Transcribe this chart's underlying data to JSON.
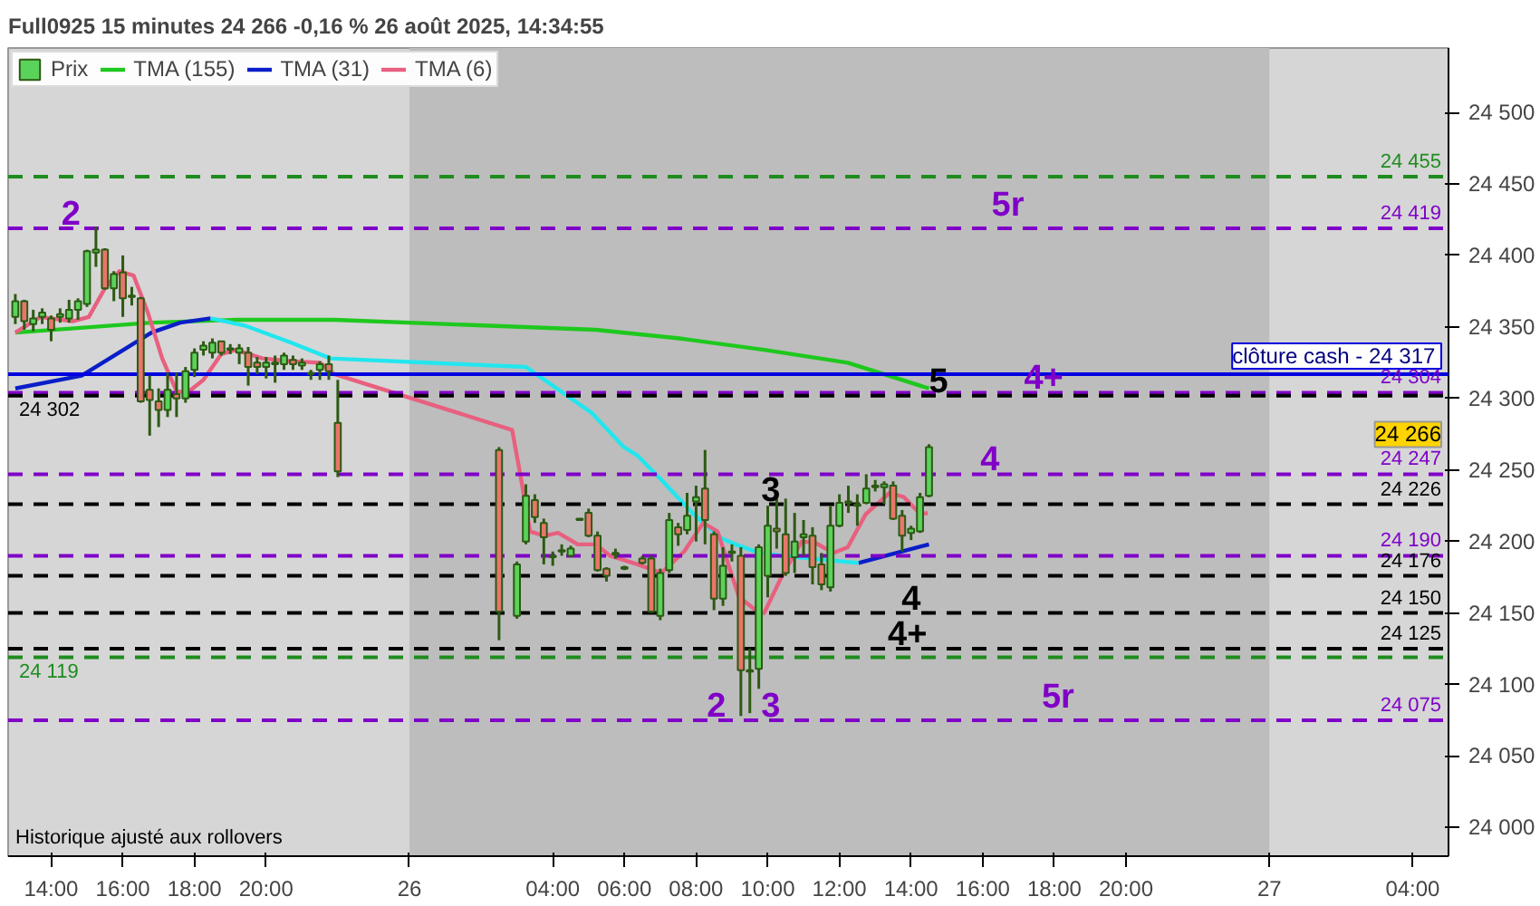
{
  "chart_data": {
    "type": "candlestick",
    "title": "Full0925 15 minutes 24 266 -0,16 % 26 août 2025, 14:34:55",
    "xlim": [
      "2025-08-25T12:48",
      "2025-08-27T05:00"
    ],
    "ylim": [
      23980,
      24545
    ],
    "xticks": [
      {
        "value": "2025-08-25T14:00",
        "label": "14:00"
      },
      {
        "value": "2025-08-25T16:00",
        "label": "16:00"
      },
      {
        "value": "2025-08-25T18:00",
        "label": "18:00"
      },
      {
        "value": "2025-08-25T20:00",
        "label": "20:00"
      },
      {
        "value": "2025-08-26T00:00",
        "label": "26"
      },
      {
        "value": "2025-08-26T04:00",
        "label": "04:00"
      },
      {
        "value": "2025-08-26T06:00",
        "label": "06:00"
      },
      {
        "value": "2025-08-26T08:00",
        "label": "08:00"
      },
      {
        "value": "2025-08-26T10:00",
        "label": "10:00"
      },
      {
        "value": "2025-08-26T12:00",
        "label": "12:00"
      },
      {
        "value": "2025-08-26T14:00",
        "label": "14:00"
      },
      {
        "value": "2025-08-26T16:00",
        "label": "16:00"
      },
      {
        "value": "2025-08-26T18:00",
        "label": "18:00"
      },
      {
        "value": "2025-08-26T20:00",
        "label": "20:00"
      },
      {
        "value": "2025-08-27T00:00",
        "label": "27"
      },
      {
        "value": "2025-08-27T04:00",
        "label": "04:00"
      }
    ],
    "yticks": [
      {
        "value": 24000,
        "label": "24 000"
      },
      {
        "value": 24050,
        "label": "24 050"
      },
      {
        "value": 24100,
        "label": "24 100"
      },
      {
        "value": 24150,
        "label": "24 150"
      },
      {
        "value": 24200,
        "label": "24 200"
      },
      {
        "value": 24250,
        "label": "24 250"
      },
      {
        "value": 24300,
        "label": "24 300"
      },
      {
        "value": 24350,
        "label": "24 350"
      },
      {
        "value": 24400,
        "label": "24 400"
      },
      {
        "value": 24450,
        "label": "24 450"
      },
      {
        "value": 24500,
        "label": "24 500"
      }
    ],
    "grid": false,
    "legend": "top left",
    "series": [
      {
        "name": "Prix",
        "color": "#2d5a14",
        "x": [
          "2025-08-25T13:00",
          "2025-08-25T13:15",
          "2025-08-25T13:30",
          "2025-08-25T13:45",
          "2025-08-25T14:00",
          "2025-08-25T14:15",
          "2025-08-25T14:30",
          "2025-08-25T14:45",
          "2025-08-25T15:00",
          "2025-08-25T15:15",
          "2025-08-25T15:30",
          "2025-08-25T15:45",
          "2025-08-25T16:00",
          "2025-08-25T16:15",
          "2025-08-25T16:30",
          "2025-08-25T16:45",
          "2025-08-25T17:00",
          "2025-08-25T17:15",
          "2025-08-25T17:30",
          "2025-08-25T17:45",
          "2025-08-25T18:00",
          "2025-08-25T18:15",
          "2025-08-25T18:30",
          "2025-08-25T18:45",
          "2025-08-25T19:00",
          "2025-08-25T19:15",
          "2025-08-25T19:30",
          "2025-08-25T19:45",
          "2025-08-25T20:00",
          "2025-08-25T20:15",
          "2025-08-25T20:30",
          "2025-08-25T20:45",
          "2025-08-25T21:00",
          "2025-08-25T21:15",
          "2025-08-25T21:30",
          "2025-08-25T21:45",
          "2025-08-25T22:00",
          "2025-08-26T02:30",
          "2025-08-26T03:00",
          "2025-08-26T03:15",
          "2025-08-26T03:30",
          "2025-08-26T03:45",
          "2025-08-26T04:00",
          "2025-08-26T04:15",
          "2025-08-26T04:30",
          "2025-08-26T04:45",
          "2025-08-26T05:00",
          "2025-08-26T05:15",
          "2025-08-26T05:30",
          "2025-08-26T05:45",
          "2025-08-26T06:00",
          "2025-08-26T06:30",
          "2025-08-26T06:45",
          "2025-08-26T07:00",
          "2025-08-26T07:15",
          "2025-08-26T07:30",
          "2025-08-26T07:45",
          "2025-08-26T08:00",
          "2025-08-26T08:15",
          "2025-08-26T08:30",
          "2025-08-26T08:45",
          "2025-08-26T09:00",
          "2025-08-26T09:15",
          "2025-08-26T09:30",
          "2025-08-26T09:45",
          "2025-08-26T10:00",
          "2025-08-26T10:15",
          "2025-08-26T10:30",
          "2025-08-26T10:45",
          "2025-08-26T11:00",
          "2025-08-26T11:15",
          "2025-08-26T11:30",
          "2025-08-26T11:45",
          "2025-08-26T12:00",
          "2025-08-26T12:15",
          "2025-08-26T12:30",
          "2025-08-26T12:45",
          "2025-08-26T13:00",
          "2025-08-26T13:15",
          "2025-08-26T13:30",
          "2025-08-26T13:45",
          "2025-08-26T14:00",
          "2025-08-26T14:15",
          "2025-08-26T14:30"
        ],
        "ohlc": [
          [
            24357,
            24373,
            24352,
            24368
          ],
          [
            24368,
            24369,
            24348,
            24354
          ],
          [
            24352,
            24362,
            24347,
            24356
          ],
          [
            24357,
            24363,
            24352,
            24360
          ],
          [
            24356,
            24358,
            24340,
            24348
          ],
          [
            24357,
            24363,
            24353,
            24359
          ],
          [
            24356,
            24369,
            24353,
            24362
          ],
          [
            24362,
            24370,
            24355,
            24368
          ],
          [
            24366,
            24404,
            24364,
            24403
          ],
          [
            24402,
            24420,
            24392,
            24404
          ],
          [
            24404,
            24405,
            24376,
            24377
          ],
          [
            24377,
            24389,
            24368,
            24387
          ],
          [
            24388,
            24400,
            24357,
            24370
          ],
          [
            24371,
            24378,
            24365,
            24372
          ],
          [
            24370,
            24371,
            24297,
            24298
          ],
          [
            24306,
            24316,
            24274,
            24299
          ],
          [
            24298,
            24307,
            24280,
            24292
          ],
          [
            24292,
            24318,
            24287,
            24306
          ],
          [
            24303,
            24318,
            24287,
            24300
          ],
          [
            24300,
            24322,
            24297,
            24319
          ],
          [
            24320,
            24335,
            24315,
            24332
          ],
          [
            24334,
            24340,
            24330,
            24337
          ],
          [
            24332,
            24342,
            24328,
            24339
          ],
          [
            24340,
            24340,
            24330,
            24332
          ],
          [
            24334,
            24338,
            24331,
            24335
          ],
          [
            24332,
            24338,
            24324,
            24335
          ],
          [
            24332,
            24336,
            24309,
            24322
          ],
          [
            24325,
            24329,
            24317,
            24322
          ],
          [
            24322,
            24329,
            24314,
            24325
          ],
          [
            24324,
            24330,
            24311,
            24325
          ],
          [
            24324,
            24332,
            24320,
            24330
          ],
          [
            24327,
            24330,
            24320,
            24324
          ],
          [
            24323,
            24328,
            24320,
            24325
          ],
          [
            24318,
            24320,
            24313,
            24317
          ],
          [
            24320,
            24326,
            24313,
            24324
          ],
          [
            24324,
            24330,
            24313,
            24319
          ],
          [
            24283,
            24313,
            24245,
            24249
          ],
          [
            24264,
            24266,
            24131,
            24151
          ],
          [
            24148,
            24186,
            24146,
            24184
          ],
          [
            24200,
            24240,
            24198,
            24232
          ],
          [
            24229,
            24233,
            24213,
            24217
          ],
          [
            24213,
            24216,
            24184,
            24203
          ],
          [
            24189,
            24193,
            24183,
            24190
          ],
          [
            24194,
            24198,
            24190,
            24193
          ],
          [
            24190,
            24197,
            24189,
            24195
          ],
          [
            24215,
            24216,
            24215,
            24216
          ],
          [
            24220,
            24223,
            24203,
            24204
          ],
          [
            24204,
            24207,
            24179,
            24180
          ],
          [
            24181,
            24182,
            24172,
            24176
          ],
          [
            24192,
            24195,
            24188,
            24191
          ],
          [
            24182,
            24183,
            24180,
            24181
          ],
          [
            24188,
            24190,
            24184,
            24185
          ],
          [
            24188,
            24190,
            24150,
            24151
          ],
          [
            24148,
            24181,
            24145,
            24178
          ],
          [
            24180,
            24220,
            24178,
            24215
          ],
          [
            24210,
            24213,
            24197,
            24205
          ],
          [
            24208,
            24234,
            24205,
            24218
          ],
          [
            24228,
            24239,
            24200,
            24231
          ],
          [
            24237,
            24264,
            24198,
            24215
          ],
          [
            24205,
            24207,
            24152,
            24160
          ],
          [
            24160,
            24196,
            24155,
            24183
          ],
          [
            24192,
            24198,
            24186,
            24193
          ],
          [
            24190,
            24196,
            24078,
            24110
          ],
          [
            24110,
            24125,
            24080,
            24109
          ],
          [
            24111,
            24198,
            24097,
            24196
          ],
          [
            24176,
            24225,
            24161,
            24211
          ],
          [
            24209,
            24230,
            24195,
            24207
          ],
          [
            24205,
            24230,
            24176,
            24178
          ],
          [
            24189,
            24220,
            24178,
            24200
          ],
          [
            24203,
            24215,
            24190,
            24205
          ],
          [
            24204,
            24210,
            24170,
            24182
          ],
          [
            24184,
            24192,
            24166,
            24170
          ],
          [
            24168,
            24225,
            24165,
            24211
          ],
          [
            24211,
            24233,
            24210,
            24227
          ],
          [
            24227,
            24239,
            24220,
            24228
          ],
          [
            24225,
            24233,
            24211,
            24226
          ],
          [
            24227,
            24247,
            24226,
            24237
          ],
          [
            24238,
            24243,
            24235,
            24239
          ],
          [
            24238,
            24242,
            24226,
            24240
          ],
          [
            24239,
            24242,
            24215,
            24216
          ],
          [
            24218,
            24222,
            24193,
            24204
          ],
          [
            24206,
            24211,
            24201,
            24209
          ],
          [
            24207,
            24234,
            24206,
            24231
          ],
          [
            24232,
            24268,
            24231,
            24266
          ]
        ],
        "colors": [
          "#5ad35a",
          "#e8766a",
          "#5ad35a",
          "#5ad35a",
          "#e8766a",
          "#5ad35a",
          "#5ad35a",
          "#5ad35a",
          "#5ad35a",
          "#5ad35a",
          "#e8766a",
          "#5ad35a",
          "#e8766a",
          "#5ad35a",
          "#e8766a",
          "#e8766a",
          "#e8766a",
          "#5ad35a",
          "#e8766a",
          "#5ad35a",
          "#5ad35a",
          "#5ad35a",
          "#5ad35a",
          "#e8766a",
          "#5ad35a",
          "#5ad35a",
          "#e8766a",
          "#e8766a",
          "#5ad35a",
          "#5ad35a",
          "#5ad35a",
          "#e8766a",
          "#5ad35a",
          "#e8766a",
          "#5ad35a",
          "#e8766a",
          "#e8766a",
          "#e8766a",
          "#5ad35a",
          "#5ad35a",
          "#e8766a",
          "#e8766a",
          "#5ad35a",
          "#e8766a",
          "#5ad35a",
          "#5ad35a",
          "#e8766a",
          "#e8766a",
          "#e8766a",
          "#e8766a",
          "#e8766a",
          "#e8766a",
          "#e8766a",
          "#5ad35a",
          "#5ad35a",
          "#e8766a",
          "#5ad35a",
          "#5ad35a",
          "#e8766a",
          "#e8766a",
          "#5ad35a",
          "#5ad35a",
          "#e8766a",
          "#e8766a",
          "#5ad35a",
          "#5ad35a",
          "#e8766a",
          "#e8766a",
          "#5ad35a",
          "#5ad35a",
          "#e8766a",
          "#e8766a",
          "#5ad35a",
          "#5ad35a",
          "#5ad35a",
          "#5ad35a",
          "#5ad35a",
          "#5ad35a",
          "#5ad35a",
          "#e8766a",
          "#e8766a",
          "#5ad35a",
          "#5ad35a",
          "#5ad35a"
        ]
      },
      {
        "name": "TMA (155)",
        "type": "line",
        "color": "#1ec81e",
        "x": [
          "2025-08-25T13:00",
          "2025-08-25T16:48",
          "2025-08-25T19:09",
          "2025-08-25T21:54",
          "2025-08-26T05:12",
          "2025-08-26T07:32",
          "2025-08-26T09:54",
          "2025-08-26T12:14",
          "2025-08-26T14:30"
        ],
        "values": [
          24346,
          24353,
          24355,
          24355,
          24348,
          24342,
          24334,
          24325,
          24307
        ]
      },
      {
        "name": "TMA (31)",
        "type": "line",
        "color": "#0a1ec8",
        "x": [
          "2025-08-25T13:00",
          "2025-08-25T14:51",
          "2025-08-25T16:48",
          "2025-08-25T17:36",
          "2025-08-25T18:27",
          "2025-08-26T03:00",
          "2025-08-26T12:32",
          "2025-08-26T14:30"
        ],
        "values": [
          24307,
          24316,
          24346,
          24353,
          24356,
          null,
          24185,
          24198
        ]
      },
      {
        "type": "line",
        "color": "#22e6ee",
        "x": [
          "2025-08-25T18:27",
          "2025-08-25T19:24",
          "2025-08-25T20:42",
          "2025-08-25T21:48",
          "2025-08-26T03:15",
          "2025-08-26T05:05",
          "2025-08-26T05:59",
          "2025-08-26T06:22",
          "2025-08-26T07:02",
          "2025-08-26T07:56",
          "2025-08-26T08:43",
          "2025-08-26T09:06",
          "2025-08-26T09:46",
          "2025-08-26T10:24",
          "2025-08-26T12:32"
        ],
        "values": [
          24356,
          24351,
          24339,
          24328,
          24322,
          24290,
          24266,
          24260,
          24243,
          24219,
          24202,
          24198,
          24192,
          24190,
          24185
        ]
      },
      {
        "name": "TMA (6)",
        "type": "line",
        "color": "#e8607f",
        "x": [
          "2025-08-25T13:00",
          "2025-08-25T13:42",
          "2025-08-25T14:36",
          "2025-08-25T15:03",
          "2025-08-25T15:30",
          "2025-08-25T15:54",
          "2025-08-25T16:18",
          "2025-08-25T16:42",
          "2025-08-25T17:06",
          "2025-08-25T17:30",
          "2025-08-25T17:48",
          "2025-08-25T18:15",
          "2025-08-25T18:45",
          "2025-08-25T19:09",
          "2025-08-25T19:54",
          "2025-08-25T20:42",
          "2025-08-25T21:30",
          "2025-08-25T21:54",
          "2025-08-26T02:52",
          "2025-08-26T03:06",
          "2025-08-26T03:22",
          "2025-08-26T03:46",
          "2025-08-26T04:09",
          "2025-08-26T04:42",
          "2025-08-26T05:12",
          "2025-08-26T05:36",
          "2025-08-26T06:22",
          "2025-08-26T07:02",
          "2025-08-26T07:40",
          "2025-08-26T08:12",
          "2025-08-26T08:36",
          "2025-08-26T09:12",
          "2025-08-26T09:46",
          "2025-08-26T09:54",
          "2025-08-26T10:24",
          "2025-08-26T10:57",
          "2025-08-26T11:20",
          "2025-08-26T11:50",
          "2025-08-26T12:14",
          "2025-08-26T12:44",
          "2025-08-26T13:24",
          "2025-08-26T13:48",
          "2025-08-26T14:16",
          "2025-08-26T14:28"
        ],
        "values": [
          24346,
          24357,
          24354,
          24357,
          24377,
          24389,
          24386,
          24360,
          24328,
          24305,
          24304,
          24313,
          24331,
          24334,
          24328,
          24326,
          24325,
          24317,
          24278,
          24246,
          24207,
          24204,
          24206,
          24198,
          24198,
          24190,
          24184,
          24178,
          24193,
          24213,
          24207,
          24161,
          24150,
          24150,
          24176,
          24200,
          24199,
          24192,
          24196,
          24219,
          24234,
          24231,
          24219,
          24220
        ]
      }
    ],
    "ref_lines": [
      {
        "axis": "y",
        "value": 24455,
        "label": "24 455",
        "color": "#1e8c1e",
        "line_style": "dashed"
      },
      {
        "axis": "y",
        "value": 24419,
        "label": "24 419",
        "color": "#8000c8",
        "line_style": "dashed"
      },
      {
        "axis": "y",
        "value": 24317,
        "label": "clôture cash -  24 317",
        "color": "#0000e0",
        "line_style": "solid"
      },
      {
        "axis": "y",
        "value": 24304,
        "label": "24 304",
        "color": "#8000c8",
        "line_style": "dashed"
      },
      {
        "axis": "y",
        "value": 24302,
        "label": "24 302",
        "color": "#000000",
        "line_style": "dashed"
      },
      {
        "axis": "y",
        "value": 24247,
        "label": "24 247",
        "color": "#8000c8",
        "line_style": "dashed"
      },
      {
        "axis": "y",
        "value": 24226,
        "label": "24 226",
        "color": "#000000",
        "line_style": "dashed"
      },
      {
        "axis": "y",
        "value": 24190,
        "label": "24 190",
        "color": "#8000c8",
        "line_style": "dashed"
      },
      {
        "axis": "y",
        "value": 24176,
        "label": "24 176",
        "color": "#000000",
        "line_style": "dashed"
      },
      {
        "axis": "y",
        "value": 24150,
        "label": "24 150",
        "color": "#000000",
        "line_style": "dashed"
      },
      {
        "axis": "y",
        "value": 24125,
        "label": "24 125",
        "color": "#000000",
        "line_style": "dashed"
      },
      {
        "axis": "y",
        "value": 24119,
        "label": "24 119",
        "color": "#1e8c1e",
        "line_style": "dashed"
      },
      {
        "axis": "y",
        "value": 24075,
        "label": "24 075",
        "color": "#8000c8",
        "line_style": "dashed"
      }
    ],
    "bands": [
      {
        "axis": "x",
        "from": "2025-08-26T00:00",
        "to": "2025-08-27T00:00",
        "color": "#bdbdbd"
      }
    ],
    "annotations": [
      {
        "text": "2",
        "x": "2025-08-25T14:33",
        "y": 24419
      },
      {
        "text": "5r",
        "x": "2025-08-26T16:42",
        "y": 24419
      },
      {
        "text": "5",
        "x": "2025-08-26T14:46",
        "y": 24302
      },
      {
        "text": "4+",
        "x": "2025-08-26T17:42",
        "y": 24304
      },
      {
        "text": "4",
        "x": "2025-08-26T16:12",
        "y": 24247
      },
      {
        "text": "3",
        "x": "2025-08-26T10:05",
        "y": 24226
      },
      {
        "text": "4",
        "x": "2025-08-26T14:00",
        "y": 24150
      },
      {
        "text": "4+",
        "x": "2025-08-26T13:54",
        "y": 24125
      },
      {
        "text": "2",
        "x": "2025-08-26T08:34",
        "y": 24075
      },
      {
        "text": "3",
        "x": "2025-08-26T10:05",
        "y": 24075
      },
      {
        "text": "5r",
        "x": "2025-08-26T18:06",
        "y": 24075
      },
      "24 266",
      "Historique ajusté aux rollovers"
    ]
  }
}
